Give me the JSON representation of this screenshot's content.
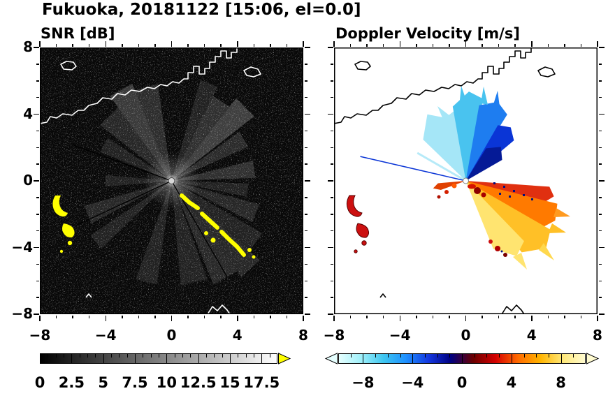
{
  "figure": {
    "title": "Fukuoka, 20181122 [15:06, el=0.0]",
    "station": "Fukuoka",
    "date": "20181122",
    "time": "15:06",
    "elevation_label": "el=0.0"
  },
  "chart_data": [
    {
      "type": "heatmap",
      "title": "SNR [dB]",
      "units": "dB",
      "xlim": [
        -8,
        8
      ],
      "ylim": [
        -8,
        8
      ],
      "xticks": [
        -8,
        -4,
        0,
        4,
        8
      ],
      "yticks": [
        -8,
        -4,
        0,
        4,
        8
      ],
      "minor_tick_step": 1,
      "grid": false,
      "colors": {
        "background": "#000000",
        "coastline": "#ffffff",
        "high_snr_overlay": "#ffff00"
      },
      "colorbar": {
        "orientation": "horizontal",
        "range": [
          0,
          18.75
        ],
        "tick_values": [
          0,
          2.5,
          5,
          7.5,
          10,
          12.5,
          15,
          17.5
        ],
        "minor_step": 0.625,
        "colormap": "grayscale black to white",
        "colormap_stops": [
          "#000000",
          "#ffffff"
        ],
        "overflow_arrow": "#ffff00"
      },
      "annotations": [
        "radar located at origin (0,0)",
        "faint radial SNR beams (0-10 dB) fan out in all azimuths, brightest toward NE and NW",
        "saturated high-SNR arc (yellow overflow color) from about (0.5,-0.5) to (4.5,-4) southeast of the radar",
        "high-SNR clutter cluster near (-7,-1) to (-6.5,-3.5) in the southwest",
        "white coastline with harbor structures across the north of the domain",
        "speckled receiver-noise background elsewhere"
      ]
    },
    {
      "type": "heatmap",
      "title": "Doppler Velocity [m/s]",
      "units": "m/s",
      "xlim": [
        -8,
        8
      ],
      "ylim": [
        -8,
        8
      ],
      "xticks": [
        -8,
        -4,
        0,
        4,
        8
      ],
      "yticks": [
        -8,
        -4,
        0,
        4,
        8
      ],
      "minor_tick_step": 1,
      "grid": false,
      "colors": {
        "background": "#ffffff",
        "coastline": "#000000"
      },
      "colorbar": {
        "orientation": "horizontal",
        "range": [
          -10,
          10
        ],
        "tick_values": [
          -8,
          -4,
          0,
          4,
          8
        ],
        "minor_step": 1,
        "colormap": "diverging cyan-blue-navy (negative) to dark red-red-orange-yellow (positive)",
        "colormap_stops": [
          "#e6ffff",
          "#9ff0fa",
          "#3ec6f0",
          "#1e90ff",
          "#1438e0",
          "#000080",
          "#6b0000",
          "#d40000",
          "#ff6a00",
          "#ffb400",
          "#ffe878",
          "#fffbd0"
        ],
        "underflow_arrow": "#e6ffff",
        "overflow_arrow": "#fffbd0"
      },
      "annotations": [
        "fan of negative Doppler velocities (cyan to dark navy, about -2 to -9 m/s) north of the radar",
        "fan of positive Doppler velocities (red, orange, gold to pale yellow, about +2 to +9 m/s) east-southeast of the radar",
        "strong red/dark-red echoes near (-7,-1) to (-6.5,-3.5) southwest (same clutter as SNR panel)",
        "small red blobs near (2,-3.5) to (3,-4.5)",
        "black coastline with harbor structures across the north of the domain"
      ]
    }
  ]
}
